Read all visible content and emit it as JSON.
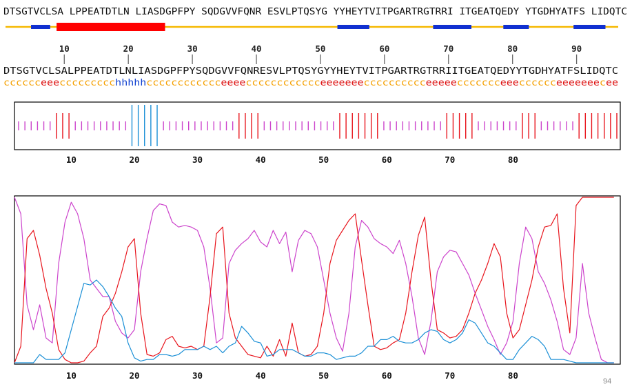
{
  "sequence": "DTSGTVCLSALPPEATDTLNLIASDGPFPYSQDGVVFQNRESVLPTQSYGYYHEYTVITPGARTRGTRRIITGEATQEDYYTGDHYATFSLIDQTC",
  "header_line": "DTSGTVCLSA LPPEATDTLN LIASDGPFPY SQDGVVFQNR ESVLPTQSYG YYHEYTVITPGARTRGTRRI ITGEATQEDY YTGDHYATFS LIDQTC",
  "ss_line": "cccccceeeccccccccchhhhhcccccccccccceeeecccccccccccceeeeeeecccccccccceeeeeccccccceeecccccceeeeeeecee",
  "ruler_numbers": [
    "10",
    "20",
    "30",
    "40",
    "50",
    "60",
    "70",
    "80",
    "90"
  ],
  "axis_ticks": [
    "10",
    "20",
    "30",
    "40",
    "50",
    "60",
    "70",
    "80"
  ],
  "page_number": "94",
  "colors": {
    "coil": "#cc44cc",
    "strand": "#e8141c",
    "helix": "#1a8fd6",
    "baseline": "#f5b800",
    "feature_blue": "#1030d0",
    "feature_red": "#ff0000",
    "coil_text": "#f5a000",
    "strand_text": "#dd1010",
    "helix_text": "#1040d0"
  },
  "header_features": [
    {
      "type": "blue",
      "start": 5,
      "end": 7
    },
    {
      "type": "red",
      "start": 9,
      "end": 25
    },
    {
      "type": "blue",
      "start": 53,
      "end": 57
    },
    {
      "type": "blue",
      "start": 68,
      "end": 73
    },
    {
      "type": "blue",
      "start": 79,
      "end": 82
    },
    {
      "type": "blue",
      "start": 90,
      "end": 94
    }
  ],
  "chart_data": {
    "type": "line",
    "x": [
      1,
      2,
      3,
      4,
      5,
      6,
      7,
      8,
      9,
      10,
      11,
      12,
      13,
      14,
      15,
      16,
      17,
      18,
      19,
      20,
      21,
      22,
      23,
      24,
      25,
      26,
      27,
      28,
      29,
      30,
      31,
      32,
      33,
      34,
      35,
      36,
      37,
      38,
      39,
      40,
      41,
      42,
      43,
      44,
      45,
      46,
      47,
      48,
      49,
      50,
      51,
      52,
      53,
      54,
      55,
      56,
      57,
      58,
      59,
      60,
      61,
      62,
      63,
      64,
      65,
      66,
      67,
      68,
      69,
      70,
      71,
      72,
      73,
      74,
      75,
      76,
      77,
      78,
      79,
      80,
      81,
      82,
      83,
      84,
      85,
      86,
      87,
      88,
      89,
      90,
      91,
      92,
      93,
      94,
      95,
      96
    ],
    "series": [
      {
        "color": "#cc44cc",
        "values": [
          1.0,
          0.9,
          0.35,
          0.2,
          0.35,
          0.15,
          0.12,
          0.6,
          0.85,
          0.97,
          0.9,
          0.75,
          0.5,
          0.45,
          0.4,
          0.4,
          0.25,
          0.18,
          0.15,
          0.2,
          0.55,
          0.75,
          0.92,
          0.96,
          0.95,
          0.85,
          0.82,
          0.83,
          0.82,
          0.8,
          0.7,
          0.45,
          0.12,
          0.15,
          0.6,
          0.68,
          0.72,
          0.75,
          0.8,
          0.73,
          0.7,
          0.8,
          0.72,
          0.79,
          0.55,
          0.74,
          0.8,
          0.78,
          0.7,
          0.5,
          0.3,
          0.15,
          0.07,
          0.3,
          0.7,
          0.86,
          0.82,
          0.75,
          0.72,
          0.7,
          0.66,
          0.74,
          0.6,
          0.4,
          0.15,
          0.05,
          0.25,
          0.55,
          0.64,
          0.68,
          0.67,
          0.6,
          0.53,
          0.42,
          0.32,
          0.22,
          0.14,
          0.05,
          0.12,
          0.25,
          0.6,
          0.82,
          0.75,
          0.55,
          0.48,
          0.38,
          0.25,
          0.08,
          0.05,
          0.15,
          0.6,
          0.3,
          0.15,
          0.02,
          0.0,
          0.0
        ]
      },
      {
        "color": "#e8141c",
        "values": [
          0.0,
          0.1,
          0.75,
          0.8,
          0.65,
          0.45,
          0.3,
          0.08,
          0.02,
          0.0,
          0.0,
          0.01,
          0.06,
          0.1,
          0.28,
          0.33,
          0.42,
          0.55,
          0.7,
          0.75,
          0.3,
          0.05,
          0.04,
          0.06,
          0.14,
          0.16,
          0.1,
          0.09,
          0.1,
          0.08,
          0.1,
          0.4,
          0.78,
          0.82,
          0.3,
          0.15,
          0.1,
          0.05,
          0.04,
          0.03,
          0.1,
          0.04,
          0.14,
          0.04,
          0.24,
          0.06,
          0.04,
          0.05,
          0.1,
          0.3,
          0.6,
          0.74,
          0.8,
          0.86,
          0.9,
          0.62,
          0.35,
          0.1,
          0.08,
          0.09,
          0.12,
          0.14,
          0.3,
          0.55,
          0.77,
          0.88,
          0.5,
          0.2,
          0.18,
          0.15,
          0.16,
          0.2,
          0.3,
          0.42,
          0.5,
          0.6,
          0.72,
          0.64,
          0.3,
          0.15,
          0.2,
          0.35,
          0.5,
          0.7,
          0.82,
          0.83,
          0.9,
          0.45,
          0.18,
          0.95,
          1.0,
          1.0,
          1.0,
          1.0,
          1.0,
          1.0
        ]
      },
      {
        "color": "#1a8fd6",
        "values": [
          0.0,
          0.0,
          0.0,
          0.0,
          0.05,
          0.02,
          0.02,
          0.02,
          0.06,
          0.2,
          0.34,
          0.48,
          0.47,
          0.5,
          0.46,
          0.4,
          0.33,
          0.28,
          0.12,
          0.03,
          0.01,
          0.02,
          0.02,
          0.05,
          0.05,
          0.04,
          0.05,
          0.08,
          0.08,
          0.08,
          0.1,
          0.08,
          0.1,
          0.06,
          0.1,
          0.12,
          0.22,
          0.18,
          0.13,
          0.12,
          0.04,
          0.05,
          0.08,
          0.08,
          0.08,
          0.06,
          0.04,
          0.04,
          0.06,
          0.06,
          0.05,
          0.02,
          0.03,
          0.04,
          0.04,
          0.06,
          0.1,
          0.1,
          0.14,
          0.14,
          0.16,
          0.13,
          0.12,
          0.12,
          0.14,
          0.18,
          0.2,
          0.19,
          0.14,
          0.12,
          0.14,
          0.18,
          0.26,
          0.24,
          0.18,
          0.12,
          0.1,
          0.06,
          0.02,
          0.02,
          0.08,
          0.12,
          0.16,
          0.14,
          0.1,
          0.02,
          0.02,
          0.02,
          0.01,
          0.0,
          0.0,
          0.0,
          0.0,
          0.0,
          0.0,
          0.0
        ]
      }
    ],
    "xlim": [
      1,
      97
    ],
    "ylim": [
      0,
      1
    ],
    "xticks": [
      10,
      20,
      30,
      40,
      50,
      60,
      70,
      80
    ]
  }
}
